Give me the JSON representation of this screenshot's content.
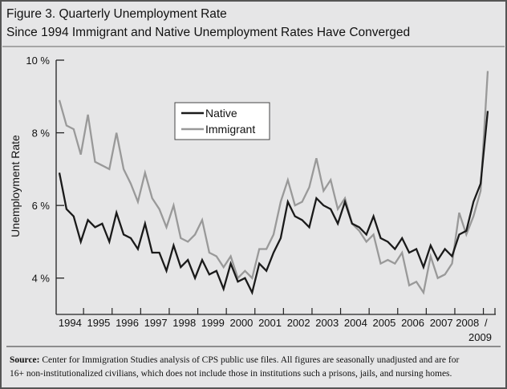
{
  "chart_data": {
    "type": "line",
    "title": "Figure 3. Quarterly Unemployment Rate",
    "subtitle": "Since 1994 Immigrant and Native Unemployment Rates Have Converged",
    "xlabel": "",
    "ylabel": "Unemployment Rate",
    "ylim": [
      3,
      10
    ],
    "y_ticks": [
      "10 %",
      "8 %",
      "6 %",
      "4 %"
    ],
    "y_tick_values": [
      10,
      8,
      6,
      4
    ],
    "x_tick_labels": [
      "1994",
      "1995",
      "1996",
      "1997",
      "1998",
      "1999",
      "2000",
      "2001",
      "2002",
      "2003",
      "2004",
      "2005",
      "2006",
      "2007",
      "2008"
    ],
    "x_last_label": [
      "/",
      "2009"
    ],
    "x_frequency": "quarterly, 1994 Q1 - 2009 Q1",
    "legend_placement": "top-center",
    "grid": false,
    "series": [
      {
        "name": "Native",
        "color": "#1a1a1a",
        "values": [
          6.9,
          5.9,
          5.7,
          5.0,
          5.6,
          5.4,
          5.5,
          5.0,
          5.8,
          5.2,
          5.1,
          4.8,
          5.5,
          4.7,
          4.7,
          4.2,
          4.9,
          4.3,
          4.5,
          4.0,
          4.5,
          4.1,
          4.2,
          3.7,
          4.4,
          3.9,
          4.0,
          3.6,
          4.4,
          4.2,
          4.7,
          5.1,
          6.1,
          5.7,
          5.6,
          5.4,
          6.2,
          6.0,
          5.9,
          5.5,
          6.1,
          5.5,
          5.4,
          5.2,
          5.7,
          5.1,
          5.0,
          4.8,
          5.1,
          4.7,
          4.8,
          4.3,
          4.9,
          4.5,
          4.8,
          4.6,
          5.2,
          5.3,
          6.1,
          6.6,
          8.6
        ]
      },
      {
        "name": "Immigrant",
        "color": "#999999",
        "values": [
          8.9,
          8.2,
          8.1,
          7.4,
          8.5,
          7.2,
          7.1,
          7.0,
          8.0,
          7.0,
          6.6,
          6.1,
          6.9,
          6.2,
          5.9,
          5.4,
          6.0,
          5.1,
          5.0,
          5.2,
          5.6,
          4.7,
          4.6,
          4.3,
          4.6,
          4.0,
          4.2,
          4.0,
          4.8,
          4.8,
          5.2,
          6.1,
          6.7,
          6.0,
          6.1,
          6.5,
          7.3,
          6.4,
          6.7,
          5.9,
          6.2,
          5.5,
          5.3,
          5.0,
          5.2,
          4.4,
          4.5,
          4.4,
          4.7,
          3.8,
          3.9,
          3.6,
          4.6,
          4.0,
          4.1,
          4.4,
          5.8,
          5.2,
          5.7,
          6.4,
          9.7
        ]
      }
    ]
  },
  "source": {
    "label": "Source:",
    "line1": " Center for Immigration Studies analysis of CPS public use files.  All figures are seasonally unadjusted and are for",
    "line2": "16+ non-institutionalized civilians, which does not include those in institutions such a prisons, jails, and nursing homes."
  }
}
